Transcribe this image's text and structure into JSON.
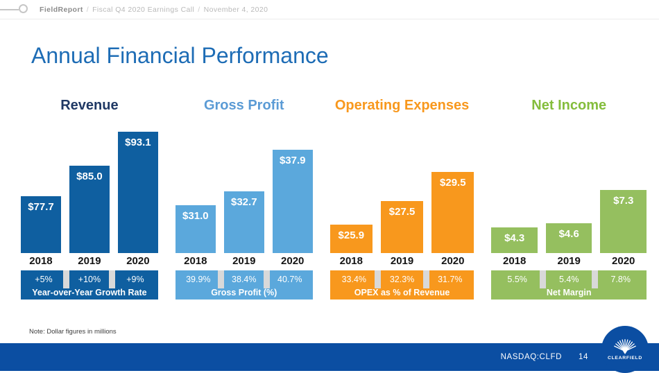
{
  "header": {
    "brand": "FieldReport",
    "separator": "/",
    "context": "Fiscal Q4 2020 Earnings Call",
    "date": "November 4, 2020"
  },
  "slide": {
    "title": "Annual Financial Performance",
    "note": "Note: Dollar figures in millions"
  },
  "footer": {
    "ticker": "NASDAQ:CLFD",
    "page_number": "14",
    "logo_text": "CLEARFIELD",
    "logo_icon": "scallop-shell-icon"
  },
  "colors": {
    "slide_title": "#1d6cb5",
    "footer_bg": "#0b4ea2",
    "band_separator": "#d9d9d9",
    "year_label": "#141414"
  },
  "chart_data": [
    {
      "type": "bar",
      "title": "Revenue",
      "categories": [
        "2018",
        "2019",
        "2020"
      ],
      "values": [
        77.7,
        85.0,
        93.1
      ],
      "value_labels": [
        "$77.7",
        "$85.0",
        "$93.1"
      ],
      "ylim": [
        64,
        96
      ],
      "color": "#0f5fa0",
      "title_color": "#1f3864",
      "sub_band": {
        "values": [
          "+5%",
          "+10%",
          "+9%"
        ],
        "label": "Year-over-Year Growth Rate"
      }
    },
    {
      "type": "bar",
      "title": "Gross Profit",
      "categories": [
        "2018",
        "2019",
        "2020"
      ],
      "values": [
        31.0,
        32.7,
        37.9
      ],
      "value_labels": [
        "$31.0",
        "$32.7",
        "$37.9"
      ],
      "ylim": [
        25,
        41.6
      ],
      "color": "#5ba8dc",
      "title_color": "#5b9bd5",
      "sub_band": {
        "values": [
          "39.9%",
          "38.4%",
          "40.7%"
        ],
        "label": "Gross Profit (%)"
      }
    },
    {
      "type": "bar",
      "title": "Operating Expenses",
      "categories": [
        "2018",
        "2019",
        "2020"
      ],
      "values": [
        25.9,
        27.5,
        29.5
      ],
      "value_labels": [
        "$25.9",
        "$27.5",
        "$29.5"
      ],
      "ylim": [
        24,
        33
      ],
      "color": "#f8981d",
      "title_color": "#f8981d",
      "sub_band": {
        "values": [
          "33.4%",
          "32.3%",
          "31.7%"
        ],
        "label": "OPEX as % of Revenue"
      }
    },
    {
      "type": "bar",
      "title": "Net Income",
      "categories": [
        "2018",
        "2019",
        "2020"
      ],
      "values": [
        4.3,
        4.6,
        7.3
      ],
      "value_labels": [
        "$4.3",
        "$4.6",
        "$7.3"
      ],
      "ylim": [
        2.2,
        13
      ],
      "color": "#95bf5f",
      "title_color": "#84bd3c",
      "sub_band": {
        "values": [
          "5.5%",
          "5.4%",
          "7.8%"
        ],
        "label": "Net Margin"
      }
    }
  ]
}
